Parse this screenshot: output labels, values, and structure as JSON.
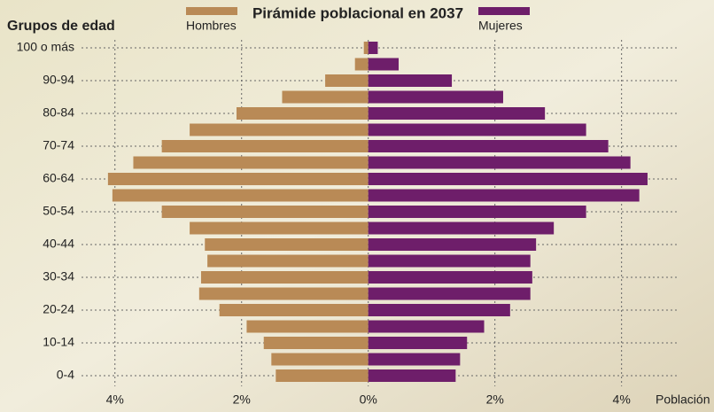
{
  "chart_data": {
    "type": "pyramid",
    "title": "Pirámide poblacional en 2037",
    "y_axis_label": "Grupos de edad",
    "x_axis_label": "Población",
    "categories": [
      "0-4",
      null,
      "10-14",
      null,
      "20-24",
      null,
      "30-34",
      null,
      "40-44",
      null,
      "50-54",
      null,
      "60-64",
      null,
      "70-74",
      null,
      "80-84",
      null,
      "90-94",
      null,
      "100 o más"
    ],
    "series": [
      {
        "name": "Hombres",
        "color": "#b98a56",
        "values": [
          1.46,
          1.53,
          1.65,
          1.92,
          2.35,
          2.67,
          2.64,
          2.54,
          2.58,
          2.82,
          3.26,
          4.04,
          4.11,
          3.71,
          3.26,
          2.82,
          2.08,
          1.36,
          0.68,
          0.21,
          0.07
        ]
      },
      {
        "name": "Mujeres",
        "color": "#6e1e6a",
        "values": [
          1.38,
          1.45,
          1.56,
          1.83,
          2.24,
          2.56,
          2.59,
          2.56,
          2.65,
          2.93,
          3.44,
          4.28,
          4.41,
          4.14,
          3.79,
          3.44,
          2.79,
          2.13,
          1.32,
          0.48,
          0.15
        ]
      }
    ],
    "xlim": [
      -4.5,
      4.9
    ],
    "xticks": [
      {
        "value": -4,
        "label": "4%"
      },
      {
        "value": -2,
        "label": "2%"
      },
      {
        "value": 0,
        "label": "0%"
      },
      {
        "value": 2,
        "label": "2%"
      },
      {
        "value": 4,
        "label": "4%"
      }
    ],
    "grid": true
  }
}
